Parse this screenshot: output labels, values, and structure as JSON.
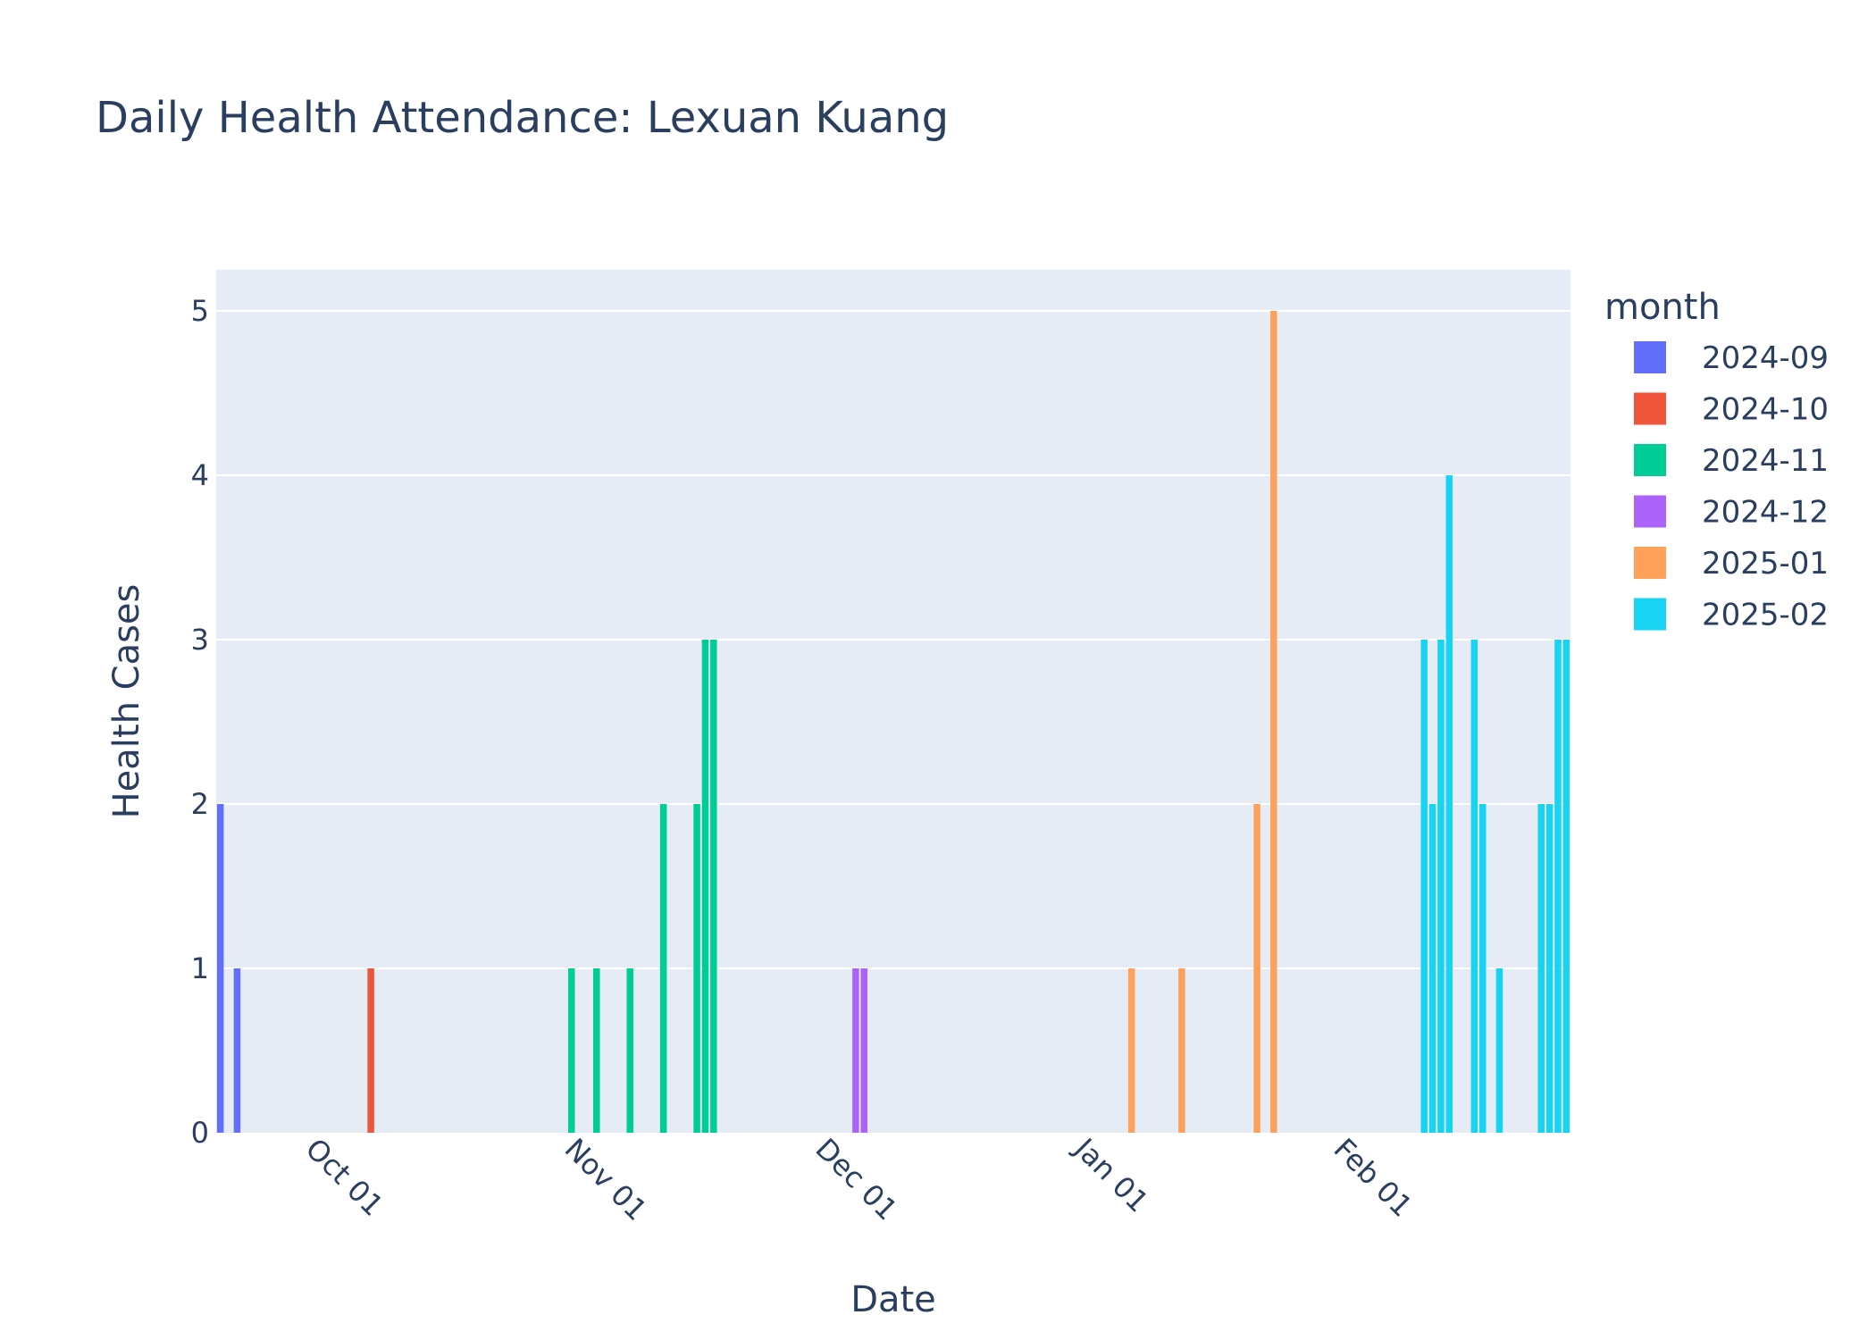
{
  "chart_data": {
    "type": "bar",
    "title": "Daily Health Attendance: Lexuan Kuang",
    "xlabel": "Date",
    "ylabel": "Health Cases",
    "ylim": [
      0,
      5.25
    ],
    "xlim": [
      "2024-09-21",
      "2025-02-28"
    ],
    "yticks": [
      0,
      1,
      2,
      3,
      4,
      5
    ],
    "xticks": [
      {
        "date": "2024-10-01",
        "label": "Oct 01"
      },
      {
        "date": "2024-11-01",
        "label": "Nov 01"
      },
      {
        "date": "2024-12-01",
        "label": "Dec 01"
      },
      {
        "date": "2025-01-01",
        "label": "Jan 01"
      },
      {
        "date": "2025-02-01",
        "label": "Feb 01"
      }
    ],
    "grid": true,
    "legend_title": "month",
    "legend_position": "right",
    "series": [
      {
        "name": "2024-09",
        "color": "#636efa",
        "points": [
          {
            "x": "2024-09-21",
            "y": 2
          },
          {
            "x": "2024-09-23",
            "y": 1
          }
        ]
      },
      {
        "name": "2024-10",
        "color": "#ef553b",
        "points": [
          {
            "x": "2024-10-09",
            "y": 1
          }
        ]
      },
      {
        "name": "2024-11",
        "color": "#00cc96",
        "points": [
          {
            "x": "2024-11-02",
            "y": 1
          },
          {
            "x": "2024-11-05",
            "y": 1
          },
          {
            "x": "2024-11-09",
            "y": 1
          },
          {
            "x": "2024-11-13",
            "y": 2
          },
          {
            "x": "2024-11-17",
            "y": 2
          },
          {
            "x": "2024-11-18",
            "y": 3
          },
          {
            "x": "2024-11-19",
            "y": 3
          }
        ]
      },
      {
        "name": "2024-12",
        "color": "#ab63fa",
        "points": [
          {
            "x": "2024-12-06",
            "y": 1
          },
          {
            "x": "2024-12-07",
            "y": 1
          }
        ]
      },
      {
        "name": "2025-01",
        "color": "#ffa15a",
        "points": [
          {
            "x": "2025-01-08",
            "y": 1
          },
          {
            "x": "2025-01-14",
            "y": 1
          },
          {
            "x": "2025-01-23",
            "y": 2
          },
          {
            "x": "2025-01-25",
            "y": 5
          }
        ]
      },
      {
        "name": "2025-02",
        "color": "#19d3f3",
        "points": [
          {
            "x": "2025-02-12",
            "y": 3
          },
          {
            "x": "2025-02-13",
            "y": 2
          },
          {
            "x": "2025-02-14",
            "y": 3
          },
          {
            "x": "2025-02-15",
            "y": 4
          },
          {
            "x": "2025-02-18",
            "y": 3
          },
          {
            "x": "2025-02-19",
            "y": 2
          },
          {
            "x": "2025-02-21",
            "y": 1
          },
          {
            "x": "2025-02-26",
            "y": 2
          },
          {
            "x": "2025-02-27",
            "y": 2
          },
          {
            "x": "2025-02-28",
            "y": 3
          },
          {
            "x": "2025-03-01",
            "y": 3
          }
        ]
      }
    ]
  },
  "colors": {
    "plot_background": "#e5ecf6",
    "grid": "#ffffff",
    "text": "#2a3f5f"
  }
}
